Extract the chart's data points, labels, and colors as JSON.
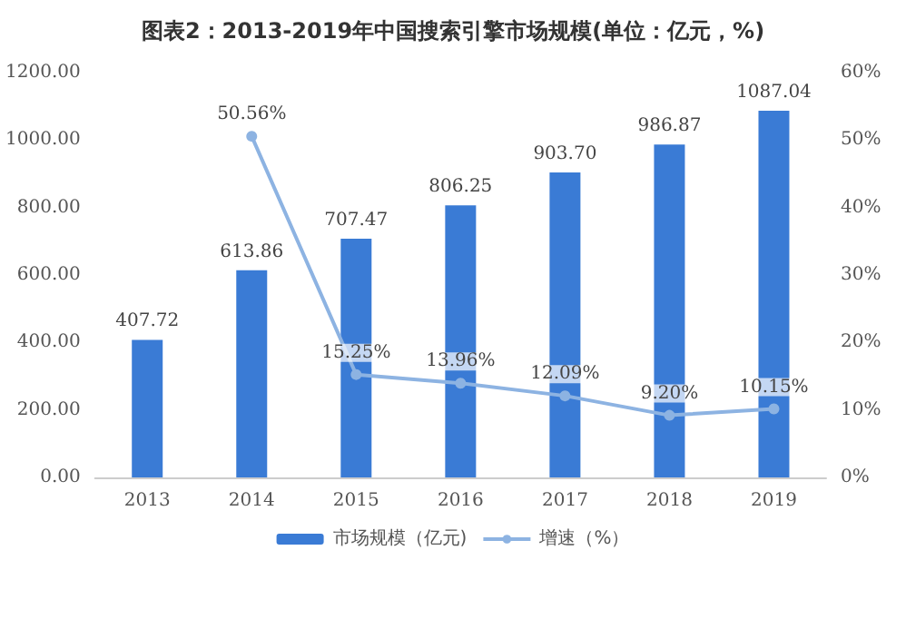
{
  "chart_data": {
    "type": "bar",
    "title": "图表2：2013-2019年中国搜索引擎市场规模(单位：亿元，%)",
    "categories": [
      "2013",
      "2014",
      "2015",
      "2016",
      "2017",
      "2018",
      "2019"
    ],
    "series": [
      {
        "name": "市场规模（亿元)",
        "color": "#3a7bd5",
        "values": [
          407.72,
          613.86,
          707.47,
          806.25,
          903.7,
          986.87,
          1087.04
        ],
        "value_labels": [
          "407.72",
          "613.86",
          "707.47",
          "806.25",
          "903.70",
          "986.87",
          "1087.04"
        ]
      },
      {
        "name": "增速（%）",
        "type": "line",
        "axis": "y2",
        "color": "#8db3e2",
        "marker": "circle",
        "values": [
          null,
          50.56,
          15.25,
          13.96,
          12.09,
          9.2,
          10.15
        ],
        "value_labels": [
          null,
          "50.56%",
          "15.25%",
          "13.96%",
          "12.09%",
          "9.20%",
          "10.15%"
        ]
      }
    ],
    "ylim": [
      0,
      1200
    ],
    "yticks": [
      {
        "value": 0,
        "label": "0.00"
      },
      {
        "value": 200,
        "label": "200.00"
      },
      {
        "value": 400,
        "label": "400.00"
      },
      {
        "value": 600,
        "label": "600.00"
      },
      {
        "value": 800,
        "label": "800.00"
      },
      {
        "value": 1000,
        "label": "1000.00"
      },
      {
        "value": 1200,
        "label": "1200.00"
      }
    ],
    "y2lim": [
      0,
      60
    ],
    "y2ticks": [
      {
        "value": 0,
        "label": "0%"
      },
      {
        "value": 10,
        "label": "10%"
      },
      {
        "value": 20,
        "label": "20%"
      },
      {
        "value": 30,
        "label": "30%"
      },
      {
        "value": 40,
        "label": "40%"
      },
      {
        "value": 50,
        "label": "50%"
      },
      {
        "value": 60,
        "label": "60%"
      }
    ],
    "legend": "bottom",
    "grid": false
  }
}
